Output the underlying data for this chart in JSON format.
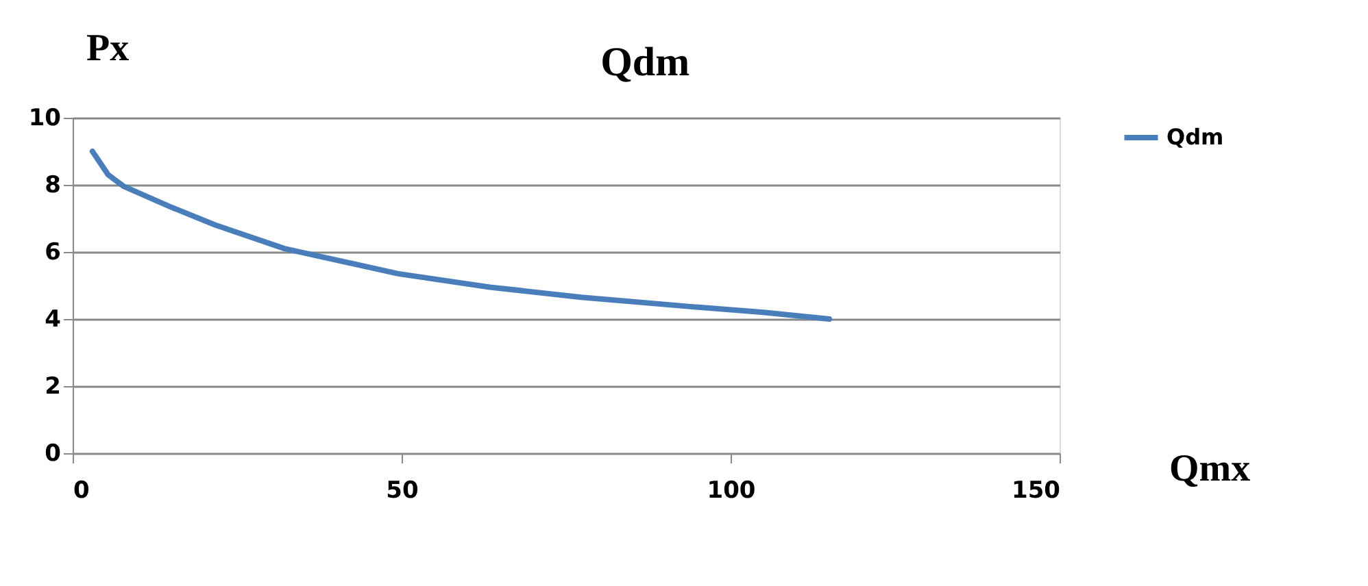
{
  "chart_data": {
    "type": "line",
    "title": "Qdm",
    "ylabel": "Px",
    "xlabel": "Qmx",
    "x": [
      3,
      5.4,
      7.8,
      14.8,
      21.7,
      32.2,
      49.5,
      63.4,
      77.3,
      93.9,
      105,
      115
    ],
    "series": [
      {
        "name": "Qdm",
        "color": "#4a7ebb",
        "values": [
          9,
          8.3,
          7.95,
          7.35,
          6.8,
          6.1,
          5.35,
          4.95,
          4.65,
          4.37,
          4.2,
          4.0
        ]
      }
    ],
    "xlim": [
      0,
      150
    ],
    "xticks": [
      0,
      50,
      100,
      150
    ],
    "ylim": [
      0,
      10
    ],
    "yticks": [
      0,
      2,
      4,
      6,
      8,
      10
    ],
    "grid": "y",
    "legend": "right",
    "marker": "none",
    "line_style": "solid"
  }
}
